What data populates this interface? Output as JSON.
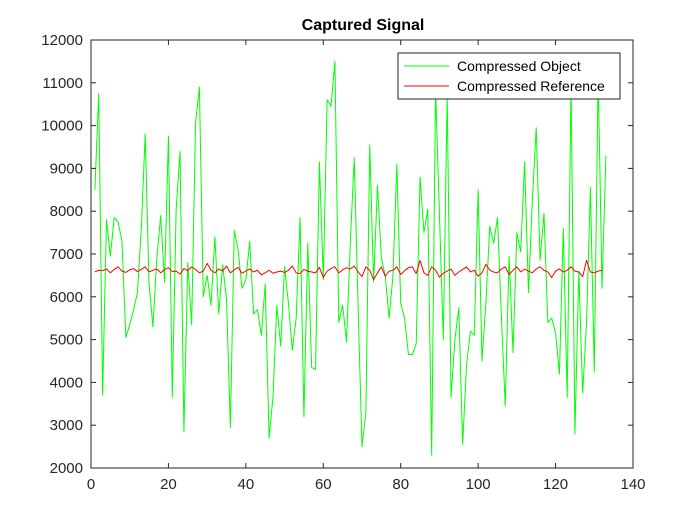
{
  "chart_data": {
    "type": "line",
    "title": "Captured Signal",
    "xlabel": "",
    "ylabel": "",
    "xlim": [
      0,
      140
    ],
    "ylim": [
      2000,
      12000
    ],
    "xticks": [
      0,
      20,
      40,
      60,
      80,
      100,
      120,
      140
    ],
    "yticks": [
      2000,
      3000,
      4000,
      5000,
      6000,
      7000,
      8000,
      9000,
      10000,
      11000,
      12000
    ],
    "grid": false,
    "box": true,
    "legend_position": "top-right",
    "series": [
      {
        "name": "Compressed Object",
        "color": "#00ff00",
        "x_start": 1,
        "x_step": 1,
        "values": [
          8500,
          10750,
          3700,
          7800,
          6950,
          7850,
          7750,
          7300,
          5050,
          5350,
          5700,
          6100,
          7600,
          9800,
          6300,
          5300,
          6900,
          7900,
          6350,
          9750,
          3650,
          8050,
          9400,
          2850,
          6800,
          5350,
          10050,
          10900,
          6000,
          6500,
          5800,
          7400,
          5600,
          6750,
          5950,
          2950,
          7550,
          7100,
          6200,
          6400,
          7300,
          5600,
          5700,
          5100,
          6300,
          2700,
          3650,
          5800,
          4850,
          6700,
          5850,
          4750,
          5500,
          7850,
          3200,
          7250,
          4350,
          4300,
          9150,
          6400,
          10600,
          10450,
          11500,
          5400,
          5800,
          4950,
          7300,
          9250,
          5750,
          2500,
          3300,
          9550,
          6350,
          8600,
          6900,
          6500,
          5500,
          6500,
          9100,
          5850,
          5500,
          4650,
          4650,
          4900,
          8800,
          7500,
          8050,
          2300,
          10850,
          7950,
          5000,
          10700,
          3650,
          5000,
          5750,
          2550,
          4400,
          5200,
          5100,
          8500,
          4500,
          5850,
          7650,
          7250,
          7850,
          5550,
          3450,
          6950,
          4700,
          7500,
          7050,
          9150,
          6100,
          8250,
          9950,
          6850,
          7950,
          5400,
          5500,
          5150,
          4200,
          7600,
          3650,
          11000,
          2800,
          6600,
          3750,
          5400,
          8550,
          4250,
          11200,
          6200,
          9300
        ]
      },
      {
        "name": "Compressed Reference",
        "color": "#ff0000",
        "x_start": 1,
        "x_step": 1,
        "values": [
          6580,
          6620,
          6610,
          6650,
          6560,
          6640,
          6700,
          6600,
          6570,
          6630,
          6660,
          6590,
          6640,
          6700,
          6580,
          6620,
          6650,
          6560,
          6640,
          6680,
          6590,
          6600,
          6530,
          6660,
          6610,
          6700,
          6640,
          6560,
          6600,
          6780,
          6620,
          6560,
          6650,
          6600,
          6720,
          6560,
          6630,
          6690,
          6550,
          6600,
          6650,
          6580,
          6620,
          6510,
          6560,
          6620,
          6550,
          6580,
          6600,
          6570,
          6620,
          6720,
          6560,
          6540,
          6640,
          6600,
          6580,
          6560,
          6690,
          6450,
          6600,
          6660,
          6700,
          6560,
          6630,
          6680,
          6650,
          6720,
          6580,
          6470,
          6700,
          6620,
          6400,
          6560,
          6700,
          6480,
          6600,
          6620,
          6700,
          6520,
          6610,
          6680,
          6700,
          6540,
          6850,
          6560,
          6500,
          6700,
          6620,
          6460,
          6550,
          6600,
          6650,
          6500,
          6580,
          6640,
          6700,
          6580,
          6620,
          6480,
          6560,
          6760,
          6620,
          6580,
          6560,
          6650,
          6700,
          6520,
          6620,
          6700,
          6580,
          6650,
          6600,
          6560,
          6650,
          6700,
          6620,
          6580,
          6450,
          6600,
          6650,
          6580,
          6620,
          6700,
          6600,
          6580,
          6470,
          6850,
          6580,
          6560,
          6600,
          6620
        ]
      }
    ]
  }
}
